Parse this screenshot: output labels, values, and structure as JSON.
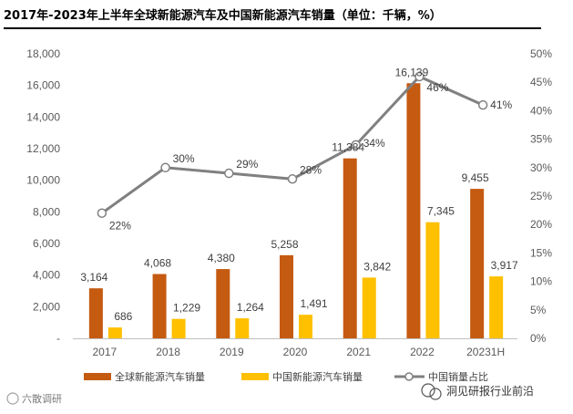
{
  "chart_data": {
    "type": "bar",
    "title": "2017年-2023年上半年全球新能源汽车及中国新能源汽车销量（单位：千辆，%）",
    "categories": [
      "2017",
      "2018",
      "2019",
      "2020",
      "2021",
      "2022",
      "20231H"
    ],
    "series": [
      {
        "name": "全球新能源汽车销量",
        "type": "bar",
        "axis": "left",
        "color": "#C55A11",
        "values": [
          3164,
          4068,
          4380,
          5258,
          11384,
          16139,
          9455
        ],
        "labels": [
          "3,164",
          "4,068",
          "4,380",
          "5,258",
          "11,384",
          "16,139",
          "9,455"
        ]
      },
      {
        "name": "中国新能源汽车销量",
        "type": "bar",
        "axis": "left",
        "color": "#FFC000",
        "values": [
          686,
          1229,
          1264,
          1491,
          3842,
          7345,
          3917
        ],
        "labels": [
          "686",
          "1,229",
          "1,264",
          "1,491",
          "3,842",
          "7,345",
          "3,917"
        ]
      },
      {
        "name": "中国销量占比",
        "type": "line",
        "axis": "right",
        "color": "#808080",
        "values": [
          22,
          30,
          29,
          28,
          34,
          46,
          41
        ],
        "labels": [
          "22%",
          "30%",
          "29%",
          "28%",
          "34%",
          "46%",
          "41%"
        ]
      }
    ],
    "y_left": {
      "range": [
        0,
        18000
      ],
      "ticks": [
        "-",
        "2,000",
        "4,000",
        "6,000",
        "8,000",
        "10,000",
        "12,000",
        "14,000",
        "16,000",
        "18,000"
      ]
    },
    "y_right": {
      "range": [
        0,
        50
      ],
      "ticks": [
        "0%",
        "5%",
        "10%",
        "15%",
        "20%",
        "25%",
        "30%",
        "35%",
        "40%",
        "45%",
        "50%"
      ]
    },
    "legend": "bottom",
    "grid": false
  },
  "watermarks": {
    "left": "六散调研",
    "right": "洞见研报行业前沿"
  }
}
